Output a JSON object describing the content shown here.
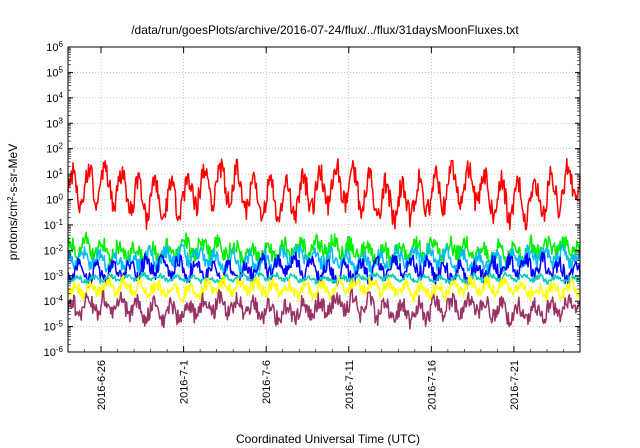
{
  "chart_data": {
    "type": "line",
    "title": "/data/run/goesPlots/archive/2016-07-24/flux/../flux/31daysMoonFluxes.txt",
    "xlabel": "Coordinated Universal Time (UTC)",
    "ylabel": "protons/cm²-s-sr-MeV",
    "ylabel_parts": {
      "pre": "protons/cm",
      "sup": "2",
      "post": "-s-sr-MeV"
    },
    "yscale": "log",
    "ylim_exponents": [
      -6,
      6
    ],
    "y_ticks": [
      {
        "base": "10",
        "exp": "-6"
      },
      {
        "base": "10",
        "exp": "-5"
      },
      {
        "base": "10",
        "exp": "-4"
      },
      {
        "base": "10",
        "exp": "-3"
      },
      {
        "base": "10",
        "exp": "-2"
      },
      {
        "base": "10",
        "exp": "-1"
      },
      {
        "base": "10",
        "exp": "0"
      },
      {
        "base": "10",
        "exp": "1"
      },
      {
        "base": "10",
        "exp": "2"
      },
      {
        "base": "10",
        "exp": "3"
      },
      {
        "base": "10",
        "exp": "4"
      },
      {
        "base": "10",
        "exp": "5"
      },
      {
        "base": "10",
        "exp": "6"
      }
    ],
    "xlim": [
      "2016-06-24",
      "2016-07-25"
    ],
    "x_ticks": [
      "2016-6-26",
      "2016-7-1",
      "2016-7-6",
      "2016-7-11",
      "2016-7-16",
      "2016-7-21"
    ],
    "grid": true,
    "series_style": [
      {
        "color": "#ff0000",
        "base_log": 0.25,
        "amplitude": 0.7,
        "noise": 0.45
      },
      {
        "color": "#00ee00",
        "base_log": -2.0,
        "amplitude": 0.25,
        "noise": 0.35
      },
      {
        "color": "#00bbff",
        "base_log": -2.35,
        "amplitude": 0.25,
        "noise": 0.3
      },
      {
        "color": "#0000ff",
        "base_log": -2.75,
        "amplitude": 0.3,
        "noise": 0.3
      },
      {
        "color": "#00ccbb",
        "base_log": -3.1,
        "amplitude": 0.1,
        "noise": 0.1
      },
      {
        "color": "#ffff00",
        "base_log": -3.5,
        "amplitude": 0.2,
        "noise": 0.25
      },
      {
        "color": "#993366",
        "base_log": -4.3,
        "amplitude": 0.3,
        "noise": 0.35
      }
    ]
  }
}
